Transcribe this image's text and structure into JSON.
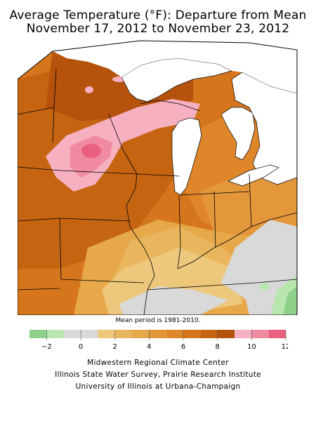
{
  "header": {
    "title_line1": "Average Temperature (°F): Departure from Mean",
    "title_line2": "November 17, 2012 to November 23, 2012"
  },
  "map": {
    "mean_period_note": "Mean period is 1981-2010.",
    "colors": {
      "water": "#ffffff",
      "lt_-2": "#8fd08a",
      "-2_0": "#b9e5ae",
      "0_1": "#d9d9d9",
      "1_2": "#ecc77c",
      "2_3": "#eab65d",
      "3_4": "#e7a84a",
      "4_5": "#e4973a",
      "5_6": "#e0862a",
      "6_7": "#d5761c",
      "7_8": "#c56512",
      "8_9": "#b5520c",
      "9_10": "#f6b0c0",
      "10_11": "#f08aa0",
      "11_12": "#e8607e"
    }
  },
  "legend": {
    "ticks": [
      "−2",
      "0",
      "2",
      "4",
      "6",
      "8",
      "10",
      "12"
    ],
    "colors": [
      "#8fd08a",
      "#b9e5ae",
      "#d9d9d9",
      "#d9d9d9",
      "#ecc77c",
      "#eab65d",
      "#e7a84a",
      "#e4973a",
      "#e0862a",
      "#d5761c",
      "#c56512",
      "#b5520c",
      "#f6b0c0",
      "#f08aa0",
      "#e8607e"
    ]
  },
  "credits": {
    "line1": "Midwestern Regional Climate Center",
    "line2": "Illinois State Water Survey, Prairie Research Institute",
    "line3": "University of Illinois at Urbana-Champaign"
  }
}
